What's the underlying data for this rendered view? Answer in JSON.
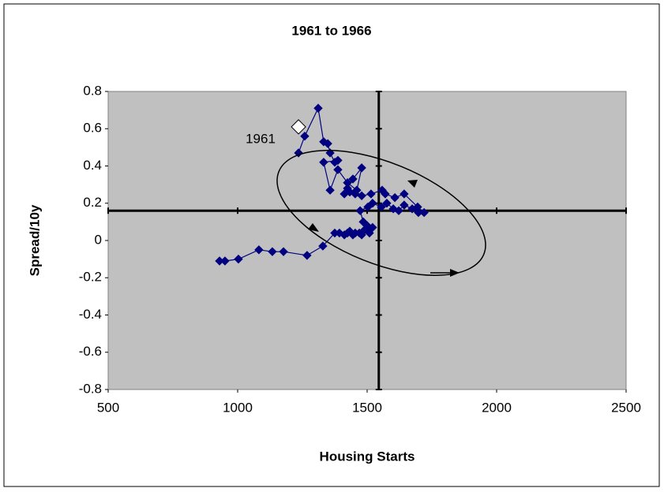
{
  "chart_data": {
    "type": "scatter",
    "title": "1961 to 1966",
    "x_label": "Housing Starts",
    "y_label": "Spread/10y",
    "xlim": [
      500,
      2500
    ],
    "ylim": [
      -0.8,
      0.8
    ],
    "xticks": [
      500,
      1000,
      1500,
      2000,
      2500
    ],
    "yticks": [
      0.8,
      0.6,
      0.4,
      0.2,
      0,
      -0.2,
      -0.4,
      -0.6,
      -0.8
    ],
    "crosshair": {
      "x": 1545,
      "y": 0.16
    },
    "series": [
      {
        "color": "#000080",
        "x": [
          930,
          951,
          1003,
          1082,
          1134,
          1177,
          1268,
          1329,
          1375,
          1393,
          1412,
          1424,
          1433,
          1445,
          1454,
          1470,
          1479,
          1485,
          1500,
          1509,
          1521,
          1500,
          1485,
          1473,
          1503,
          1521,
          1555,
          1576,
          1601,
          1622,
          1643,
          1674,
          1698,
          1720,
          1695,
          1643,
          1607,
          1570,
          1558,
          1515,
          1479,
          1454,
          1433,
          1412,
          1424,
          1445,
          1479,
          1460,
          1424,
          1387,
          1357,
          1332,
          1387,
          1375,
          1357,
          1348,
          1332,
          1311,
          1259,
          1235
        ],
        "values": [
          -0.11,
          -0.11,
          -0.1,
          -0.05,
          -0.06,
          -0.06,
          -0.08,
          -0.03,
          0.04,
          0.04,
          0.03,
          0.04,
          0.05,
          0.03,
          0.04,
          0.04,
          0.03,
          0.05,
          0.07,
          0.04,
          0.07,
          0.08,
          0.1,
          0.16,
          0.18,
          0.2,
          0.18,
          0.2,
          0.17,
          0.16,
          0.19,
          0.17,
          0.15,
          0.15,
          0.18,
          0.25,
          0.23,
          0.25,
          0.27,
          0.25,
          0.24,
          0.25,
          0.26,
          0.25,
          0.28,
          0.33,
          0.39,
          0.27,
          0.31,
          0.38,
          0.27,
          0.42,
          0.43,
          0.42,
          0.47,
          0.52,
          0.53,
          0.71,
          0.56,
          0.47
        ]
      },
      {
        "color": "#ffffff",
        "x": [
          1235
        ],
        "values": [
          0.61
        ]
      }
    ],
    "annotation": "1961"
  }
}
